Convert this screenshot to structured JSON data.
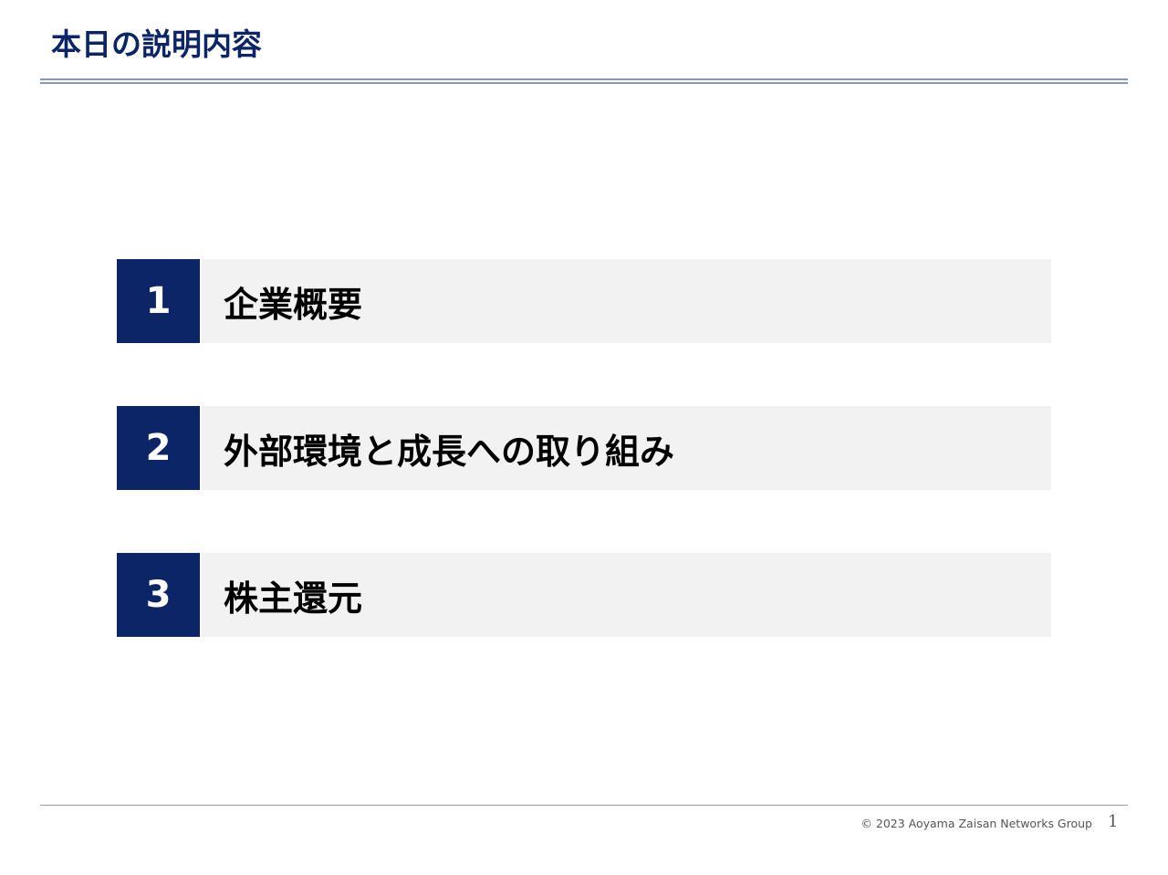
{
  "header": {
    "title": "本日の説明内容"
  },
  "agenda": {
    "items": [
      {
        "number": "1",
        "label": "企業概要"
      },
      {
        "number": "2",
        "label": "外部環境と成長への取り組み"
      },
      {
        "number": "3",
        "label": "株主還元"
      }
    ]
  },
  "footer": {
    "copyright": "© 2023 Aoyama Zaisan Networks Group",
    "page_number": "1"
  },
  "colors": {
    "accent": "#0b2566",
    "item_background": "#f2f2f2",
    "rule": "#8a9bb0"
  }
}
